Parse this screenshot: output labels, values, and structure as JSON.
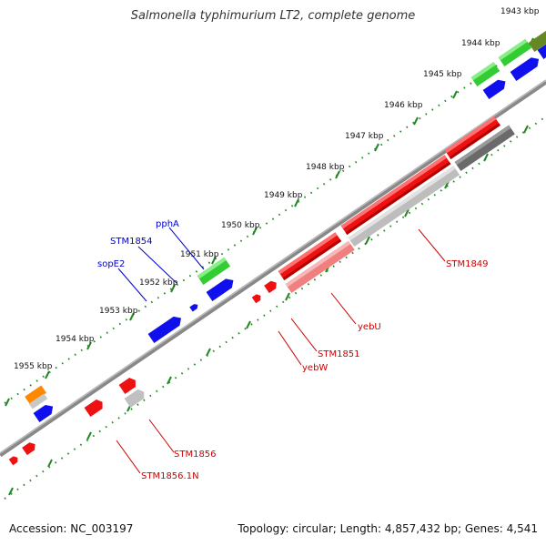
{
  "title": "Salmonella typhimurium LT2, complete genome",
  "footer": {
    "accession": "Accession: NC_003197",
    "topology": "Topology: circular; Length: 4,857,432 bp; Genes: 4,541"
  },
  "scale_labels": [
    "1943 kbp",
    "1944 kbp",
    "1945 kbp",
    "1946 kbp",
    "1947 kbp",
    "1948 kbp",
    "1949 kbp",
    "1950 kbp",
    "1951 kbp",
    "1952 kbp",
    "1953 kbp",
    "1954 kbp",
    "1955 kbp"
  ],
  "gene_labels": {
    "pphA": "pphA",
    "STM1854": "STM1854",
    "sopE2": "sopE2",
    "STM1849": "STM1849",
    "yebU": "yebU",
    "STM1851": "STM1851",
    "yebW": "yebW",
    "STM1856": "STM1856",
    "STM1856_1N": "STM1856.1N"
  },
  "colors": {
    "red": "#ee1111",
    "blue": "#1010ee",
    "green": "#33cc33",
    "orange": "#ff8800",
    "gray": "#c0c0c0",
    "dark_gray": "#707070",
    "olive": "#668822",
    "pink": "#f08080",
    "backbone": "#8a8a8a",
    "tick_green": "#228822"
  }
}
